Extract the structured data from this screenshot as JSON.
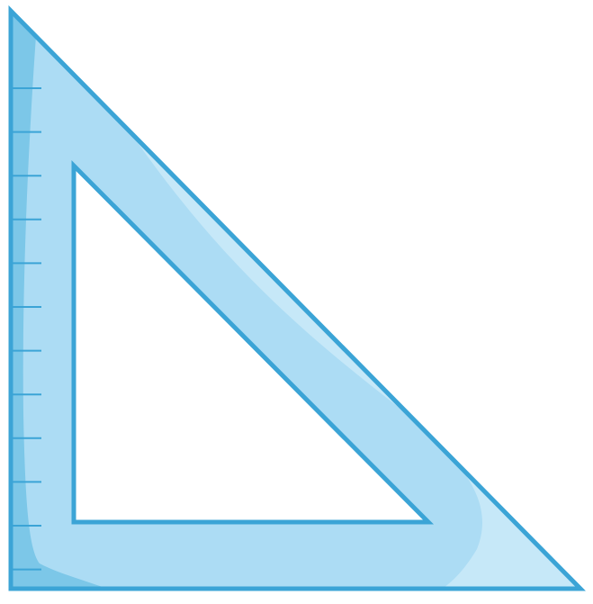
{
  "illustration": {
    "subject": "set-square-icon",
    "tick_count": 12,
    "colors": {
      "body": "#acdcf4",
      "edge_shade": "#7cc7e8",
      "highlight": "#c6e8f8",
      "outline": "#3ba4d6",
      "background": "#ffffff"
    }
  }
}
